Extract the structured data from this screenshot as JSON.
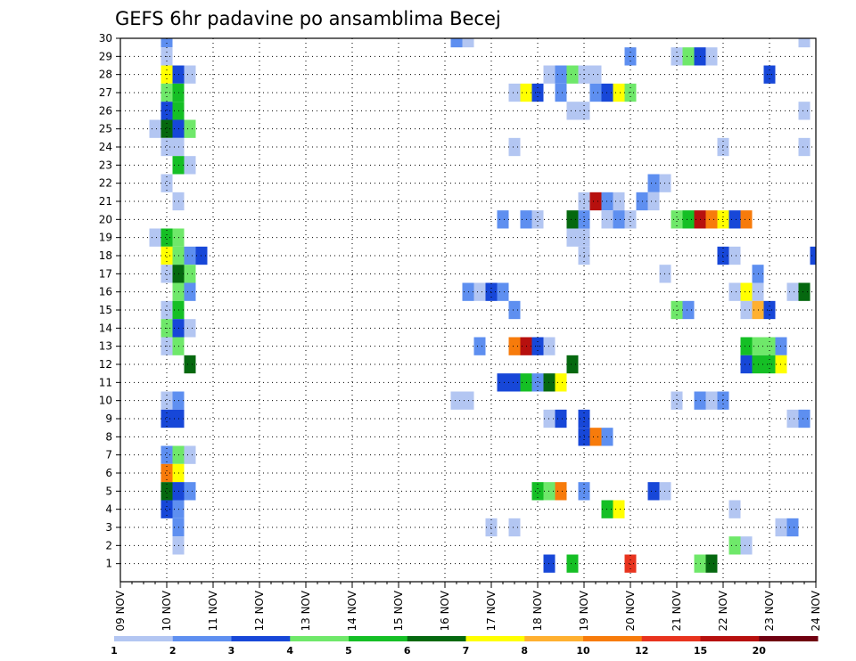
{
  "chart_data": {
    "type": "heatmap",
    "title": "GEFS 6hr padavine po ansamblima Becej",
    "xlabel": "",
    "ylabel": "",
    "x_ticks": [
      "09 NOV",
      "10 NOV",
      "11 NOV",
      "12 NOV",
      "13 NOV",
      "14 NOV",
      "15 NOV",
      "16 NOV",
      "17 NOV",
      "18 NOV",
      "19 NOV",
      "20 NOV",
      "21 NOV",
      "22 NOV",
      "23 NOV",
      "24 NOV"
    ],
    "y_ticks": [
      "1",
      "2",
      "3",
      "4",
      "5",
      "6",
      "7",
      "8",
      "9",
      "10",
      "11",
      "12",
      "13",
      "14",
      "15",
      "16",
      "17",
      "18",
      "19",
      "20",
      "21",
      "22",
      "23",
      "24",
      "25",
      "26",
      "27",
      "28",
      "29",
      "30"
    ],
    "xlim": [
      0,
      60
    ],
    "ylim": [
      0,
      30
    ],
    "x_unit": "6-hour steps from 09 NOV 00Z",
    "legend": {
      "labels": [
        "1",
        "2",
        "3",
        "4",
        "5",
        "6",
        "7",
        "8",
        "10",
        "12",
        "15",
        "20"
      ],
      "colors": [
        "#b3c6f2",
        "#5e8ff0",
        "#1747d8",
        "#6fe86a",
        "#15bf25",
        "#05680f",
        "#ffff00",
        "#ffb030",
        "#f77b0b",
        "#e8331e",
        "#b7100e",
        "#700010"
      ]
    },
    "cells": [
      {
        "t": 4,
        "m": 30,
        "v": 2
      },
      {
        "t": 30,
        "m": 30,
        "v": 1
      },
      {
        "t": 29,
        "m": 30,
        "v": 2
      },
      {
        "t": 59,
        "m": 30,
        "v": 1
      },
      {
        "t": 4,
        "m": 29,
        "v": 1
      },
      {
        "t": 44,
        "m": 29,
        "v": 2
      },
      {
        "t": 48,
        "m": 29,
        "v": 1
      },
      {
        "t": 49,
        "m": 29,
        "v": 4
      },
      {
        "t": 50,
        "m": 29,
        "v": 3
      },
      {
        "t": 51,
        "m": 29,
        "v": 1
      },
      {
        "t": 4,
        "m": 28,
        "v": 7
      },
      {
        "t": 5,
        "m": 28,
        "v": 3
      },
      {
        "t": 6,
        "m": 28,
        "v": 1
      },
      {
        "t": 37,
        "m": 28,
        "v": 1
      },
      {
        "t": 38,
        "m": 28,
        "v": 2
      },
      {
        "t": 39,
        "m": 28,
        "v": 4
      },
      {
        "t": 40,
        "m": 28,
        "v": 1
      },
      {
        "t": 41,
        "m": 28,
        "v": 1
      },
      {
        "t": 56,
        "m": 28,
        "v": 3
      },
      {
        "t": 4,
        "m": 27,
        "v": 4
      },
      {
        "t": 5,
        "m": 27,
        "v": 5
      },
      {
        "t": 34,
        "m": 27,
        "v": 1
      },
      {
        "t": 35,
        "m": 27,
        "v": 7
      },
      {
        "t": 36,
        "m": 27,
        "v": 3
      },
      {
        "t": 38,
        "m": 27,
        "v": 2
      },
      {
        "t": 41,
        "m": 27,
        "v": 2
      },
      {
        "t": 42,
        "m": 27,
        "v": 3
      },
      {
        "t": 43,
        "m": 27,
        "v": 7
      },
      {
        "t": 44,
        "m": 27,
        "v": 4
      },
      {
        "t": 4,
        "m": 26,
        "v": 3
      },
      {
        "t": 5,
        "m": 26,
        "v": 5
      },
      {
        "t": 39,
        "m": 26,
        "v": 1
      },
      {
        "t": 40,
        "m": 26,
        "v": 1
      },
      {
        "t": 59,
        "m": 26,
        "v": 1
      },
      {
        "t": 3,
        "m": 25,
        "v": 1
      },
      {
        "t": 4,
        "m": 25,
        "v": 6
      },
      {
        "t": 5,
        "m": 25,
        "v": 3
      },
      {
        "t": 6,
        "m": 25,
        "v": 4
      },
      {
        "t": 4,
        "m": 24,
        "v": 1
      },
      {
        "t": 5,
        "m": 24,
        "v": 1
      },
      {
        "t": 34,
        "m": 24,
        "v": 1
      },
      {
        "t": 52,
        "m": 24,
        "v": 1
      },
      {
        "t": 59,
        "m": 24,
        "v": 1
      },
      {
        "t": 5,
        "m": 23,
        "v": 5
      },
      {
        "t": 6,
        "m": 23,
        "v": 1
      },
      {
        "t": 4,
        "m": 22,
        "v": 1
      },
      {
        "t": 46,
        "m": 22,
        "v": 2
      },
      {
        "t": 47,
        "m": 22,
        "v": 1
      },
      {
        "t": 5,
        "m": 21,
        "v": 1
      },
      {
        "t": 40,
        "m": 21,
        "v": 1
      },
      {
        "t": 41,
        "m": 21,
        "v": 15
      },
      {
        "t": 42,
        "m": 21,
        "v": 2
      },
      {
        "t": 43,
        "m": 21,
        "v": 1
      },
      {
        "t": 45,
        "m": 21,
        "v": 2
      },
      {
        "t": 46,
        "m": 21,
        "v": 1
      },
      {
        "t": 33,
        "m": 20,
        "v": 2
      },
      {
        "t": 35,
        "m": 20,
        "v": 2
      },
      {
        "t": 36,
        "m": 20,
        "v": 1
      },
      {
        "t": 39,
        "m": 20,
        "v": 6
      },
      {
        "t": 40,
        "m": 20,
        "v": 2
      },
      {
        "t": 42,
        "m": 20,
        "v": 1
      },
      {
        "t": 43,
        "m": 20,
        "v": 2
      },
      {
        "t": 44,
        "m": 20,
        "v": 1
      },
      {
        "t": 48,
        "m": 20,
        "v": 4
      },
      {
        "t": 49,
        "m": 20,
        "v": 5
      },
      {
        "t": 50,
        "m": 20,
        "v": 15
      },
      {
        "t": 51,
        "m": 20,
        "v": 10
      },
      {
        "t": 52,
        "m": 20,
        "v": 7
      },
      {
        "t": 53,
        "m": 20,
        "v": 3
      },
      {
        "t": 54,
        "m": 20,
        "v": 10
      },
      {
        "t": 3,
        "m": 19,
        "v": 1
      },
      {
        "t": 4,
        "m": 19,
        "v": 5
      },
      {
        "t": 5,
        "m": 19,
        "v": 4
      },
      {
        "t": 39,
        "m": 19,
        "v": 1
      },
      {
        "t": 40,
        "m": 19,
        "v": 1
      },
      {
        "t": 4,
        "m": 18,
        "v": 7
      },
      {
        "t": 5,
        "m": 18,
        "v": 4
      },
      {
        "t": 6,
        "m": 18,
        "v": 2
      },
      {
        "t": 7,
        "m": 18,
        "v": 3
      },
      {
        "t": 40,
        "m": 18,
        "v": 1
      },
      {
        "t": 52,
        "m": 18,
        "v": 3
      },
      {
        "t": 53,
        "m": 18,
        "v": 1
      },
      {
        "t": 60,
        "m": 18,
        "v": 3
      },
      {
        "t": 4,
        "m": 17,
        "v": 1
      },
      {
        "t": 5,
        "m": 17,
        "v": 6
      },
      {
        "t": 6,
        "m": 17,
        "v": 4
      },
      {
        "t": 47,
        "m": 17,
        "v": 1
      },
      {
        "t": 55,
        "m": 17,
        "v": 2
      },
      {
        "t": 5,
        "m": 16,
        "v": 4
      },
      {
        "t": 6,
        "m": 16,
        "v": 2
      },
      {
        "t": 30,
        "m": 16,
        "v": 2
      },
      {
        "t": 31,
        "m": 16,
        "v": 1
      },
      {
        "t": 32,
        "m": 16,
        "v": 3
      },
      {
        "t": 33,
        "m": 16,
        "v": 2
      },
      {
        "t": 53,
        "m": 16,
        "v": 1
      },
      {
        "t": 54,
        "m": 16,
        "v": 7
      },
      {
        "t": 55,
        "m": 16,
        "v": 1
      },
      {
        "t": 58,
        "m": 16,
        "v": 1
      },
      {
        "t": 59,
        "m": 16,
        "v": 6
      },
      {
        "t": 4,
        "m": 15,
        "v": 1
      },
      {
        "t": 5,
        "m": 15,
        "v": 5
      },
      {
        "t": 34,
        "m": 15,
        "v": 2
      },
      {
        "t": 48,
        "m": 15,
        "v": 4
      },
      {
        "t": 49,
        "m": 15,
        "v": 2
      },
      {
        "t": 54,
        "m": 15,
        "v": 1
      },
      {
        "t": 55,
        "m": 15,
        "v": 8
      },
      {
        "t": 56,
        "m": 15,
        "v": 3
      },
      {
        "t": 4,
        "m": 14,
        "v": 4
      },
      {
        "t": 5,
        "m": 14,
        "v": 3
      },
      {
        "t": 6,
        "m": 14,
        "v": 1
      },
      {
        "t": 4,
        "m": 13,
        "v": 1
      },
      {
        "t": 5,
        "m": 13,
        "v": 4
      },
      {
        "t": 31,
        "m": 13,
        "v": 2
      },
      {
        "t": 34,
        "m": 13,
        "v": 10
      },
      {
        "t": 35,
        "m": 13,
        "v": 15
      },
      {
        "t": 36,
        "m": 13,
        "v": 3
      },
      {
        "t": 37,
        "m": 13,
        "v": 1
      },
      {
        "t": 54,
        "m": 13,
        "v": 5
      },
      {
        "t": 55,
        "m": 13,
        "v": 4
      },
      {
        "t": 56,
        "m": 13,
        "v": 4
      },
      {
        "t": 57,
        "m": 13,
        "v": 2
      },
      {
        "t": 6,
        "m": 12,
        "v": 6
      },
      {
        "t": 39,
        "m": 12,
        "v": 6
      },
      {
        "t": 54,
        "m": 12,
        "v": 3
      },
      {
        "t": 55,
        "m": 12,
        "v": 5
      },
      {
        "t": 56,
        "m": 12,
        "v": 5
      },
      {
        "t": 57,
        "m": 12,
        "v": 7
      },
      {
        "t": 33,
        "m": 11,
        "v": 3
      },
      {
        "t": 34,
        "m": 11,
        "v": 3
      },
      {
        "t": 35,
        "m": 11,
        "v": 5
      },
      {
        "t": 36,
        "m": 11,
        "v": 2
      },
      {
        "t": 37,
        "m": 11,
        "v": 6
      },
      {
        "t": 38,
        "m": 11,
        "v": 7
      },
      {
        "t": 4,
        "m": 10,
        "v": 1
      },
      {
        "t": 5,
        "m": 10,
        "v": 2
      },
      {
        "t": 29,
        "m": 10,
        "v": 1
      },
      {
        "t": 30,
        "m": 10,
        "v": 1
      },
      {
        "t": 48,
        "m": 10,
        "v": 1
      },
      {
        "t": 50,
        "m": 10,
        "v": 2
      },
      {
        "t": 51,
        "m": 10,
        "v": 1
      },
      {
        "t": 52,
        "m": 10,
        "v": 2
      },
      {
        "t": 4,
        "m": 9,
        "v": 3
      },
      {
        "t": 5,
        "m": 9,
        "v": 3
      },
      {
        "t": 37,
        "m": 9,
        "v": 1
      },
      {
        "t": 38,
        "m": 9,
        "v": 3
      },
      {
        "t": 40,
        "m": 9,
        "v": 3
      },
      {
        "t": 58,
        "m": 9,
        "v": 1
      },
      {
        "t": 59,
        "m": 9,
        "v": 2
      },
      {
        "t": 40,
        "m": 8,
        "v": 3
      },
      {
        "t": 41,
        "m": 8,
        "v": 10
      },
      {
        "t": 42,
        "m": 8,
        "v": 2
      },
      {
        "t": 4,
        "m": 7,
        "v": 2
      },
      {
        "t": 5,
        "m": 7,
        "v": 4
      },
      {
        "t": 6,
        "m": 7,
        "v": 1
      },
      {
        "t": 4,
        "m": 6,
        "v": 10
      },
      {
        "t": 5,
        "m": 6,
        "v": 7
      },
      {
        "t": 4,
        "m": 5,
        "v": 6
      },
      {
        "t": 5,
        "m": 5,
        "v": 3
      },
      {
        "t": 6,
        "m": 5,
        "v": 2
      },
      {
        "t": 36,
        "m": 5,
        "v": 5
      },
      {
        "t": 37,
        "m": 5,
        "v": 4
      },
      {
        "t": 38,
        "m": 5,
        "v": 10
      },
      {
        "t": 40,
        "m": 5,
        "v": 2
      },
      {
        "t": 46,
        "m": 5,
        "v": 3
      },
      {
        "t": 47,
        "m": 5,
        "v": 1
      },
      {
        "t": 4,
        "m": 4,
        "v": 3
      },
      {
        "t": 5,
        "m": 4,
        "v": 2
      },
      {
        "t": 42,
        "m": 4,
        "v": 5
      },
      {
        "t": 43,
        "m": 4,
        "v": 7
      },
      {
        "t": 53,
        "m": 4,
        "v": 1
      },
      {
        "t": 5,
        "m": 3,
        "v": 2
      },
      {
        "t": 32,
        "m": 3,
        "v": 1
      },
      {
        "t": 34,
        "m": 3,
        "v": 1
      },
      {
        "t": 57,
        "m": 3,
        "v": 1
      },
      {
        "t": 58,
        "m": 3,
        "v": 2
      },
      {
        "t": 5,
        "m": 2,
        "v": 1
      },
      {
        "t": 53,
        "m": 2,
        "v": 4
      },
      {
        "t": 54,
        "m": 2,
        "v": 1
      },
      {
        "t": 37,
        "m": 1,
        "v": 3
      },
      {
        "t": 39,
        "m": 1,
        "v": 5
      },
      {
        "t": 44,
        "m": 1,
        "v": 12
      },
      {
        "t": 50,
        "m": 1,
        "v": 4
      },
      {
        "t": 51,
        "m": 1,
        "v": 6
      }
    ]
  }
}
